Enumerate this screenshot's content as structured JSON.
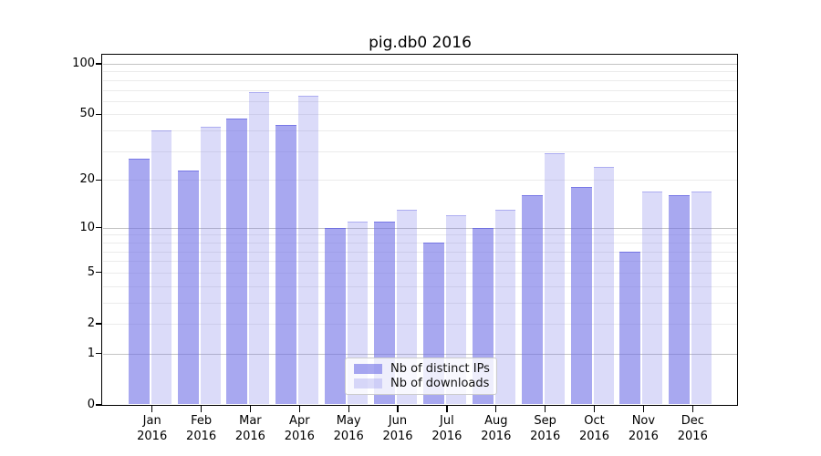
{
  "title": "pig.db0 2016",
  "chart_data": {
    "type": "bar",
    "title": "pig.db0 2016",
    "yscale": "log1p",
    "ylim": [
      0,
      113
    ],
    "grid": true,
    "legend_position": "lower-center",
    "ytick_labels": [
      "100",
      "50",
      "20",
      "10",
      "5",
      "2",
      "1",
      "0"
    ],
    "yticks": [
      100,
      50,
      20,
      10,
      5,
      2,
      1,
      0
    ],
    "minor_gridlines": [
      2,
      3,
      4,
      5,
      6,
      7,
      8,
      9,
      20,
      30,
      40,
      50,
      60,
      70,
      80,
      90
    ],
    "major_gridlines": [
      1,
      10,
      100
    ],
    "categories": [
      "Jan",
      "Feb",
      "Mar",
      "Apr",
      "May",
      "Jun",
      "Jul",
      "Aug",
      "Sep",
      "Oct",
      "Nov",
      "Dec"
    ],
    "year": "2016",
    "series": [
      {
        "name": "Nb of distinct IPs",
        "color": "#a8a8f0",
        "rgba": "rgba(110,110,230,0.60)",
        "values": [
          27,
          23,
          47,
          43,
          10,
          11,
          8,
          10,
          16,
          18,
          7,
          16
        ]
      },
      {
        "name": "Nb of downloads",
        "color": "#dbdbf9",
        "rgba": "rgba(110,110,230,0.25)",
        "values": [
          40,
          42,
          68,
          65,
          11,
          13,
          12,
          13,
          29,
          24,
          17,
          17
        ]
      }
    ]
  },
  "colors": {
    "background": "#ffffff",
    "axis": "#000000",
    "major_grid": "#c4c4c4",
    "minor_grid": "#ebebeb",
    "ips_bar": "#a8a8f0",
    "downloads_bar": "#dbdbf9"
  }
}
